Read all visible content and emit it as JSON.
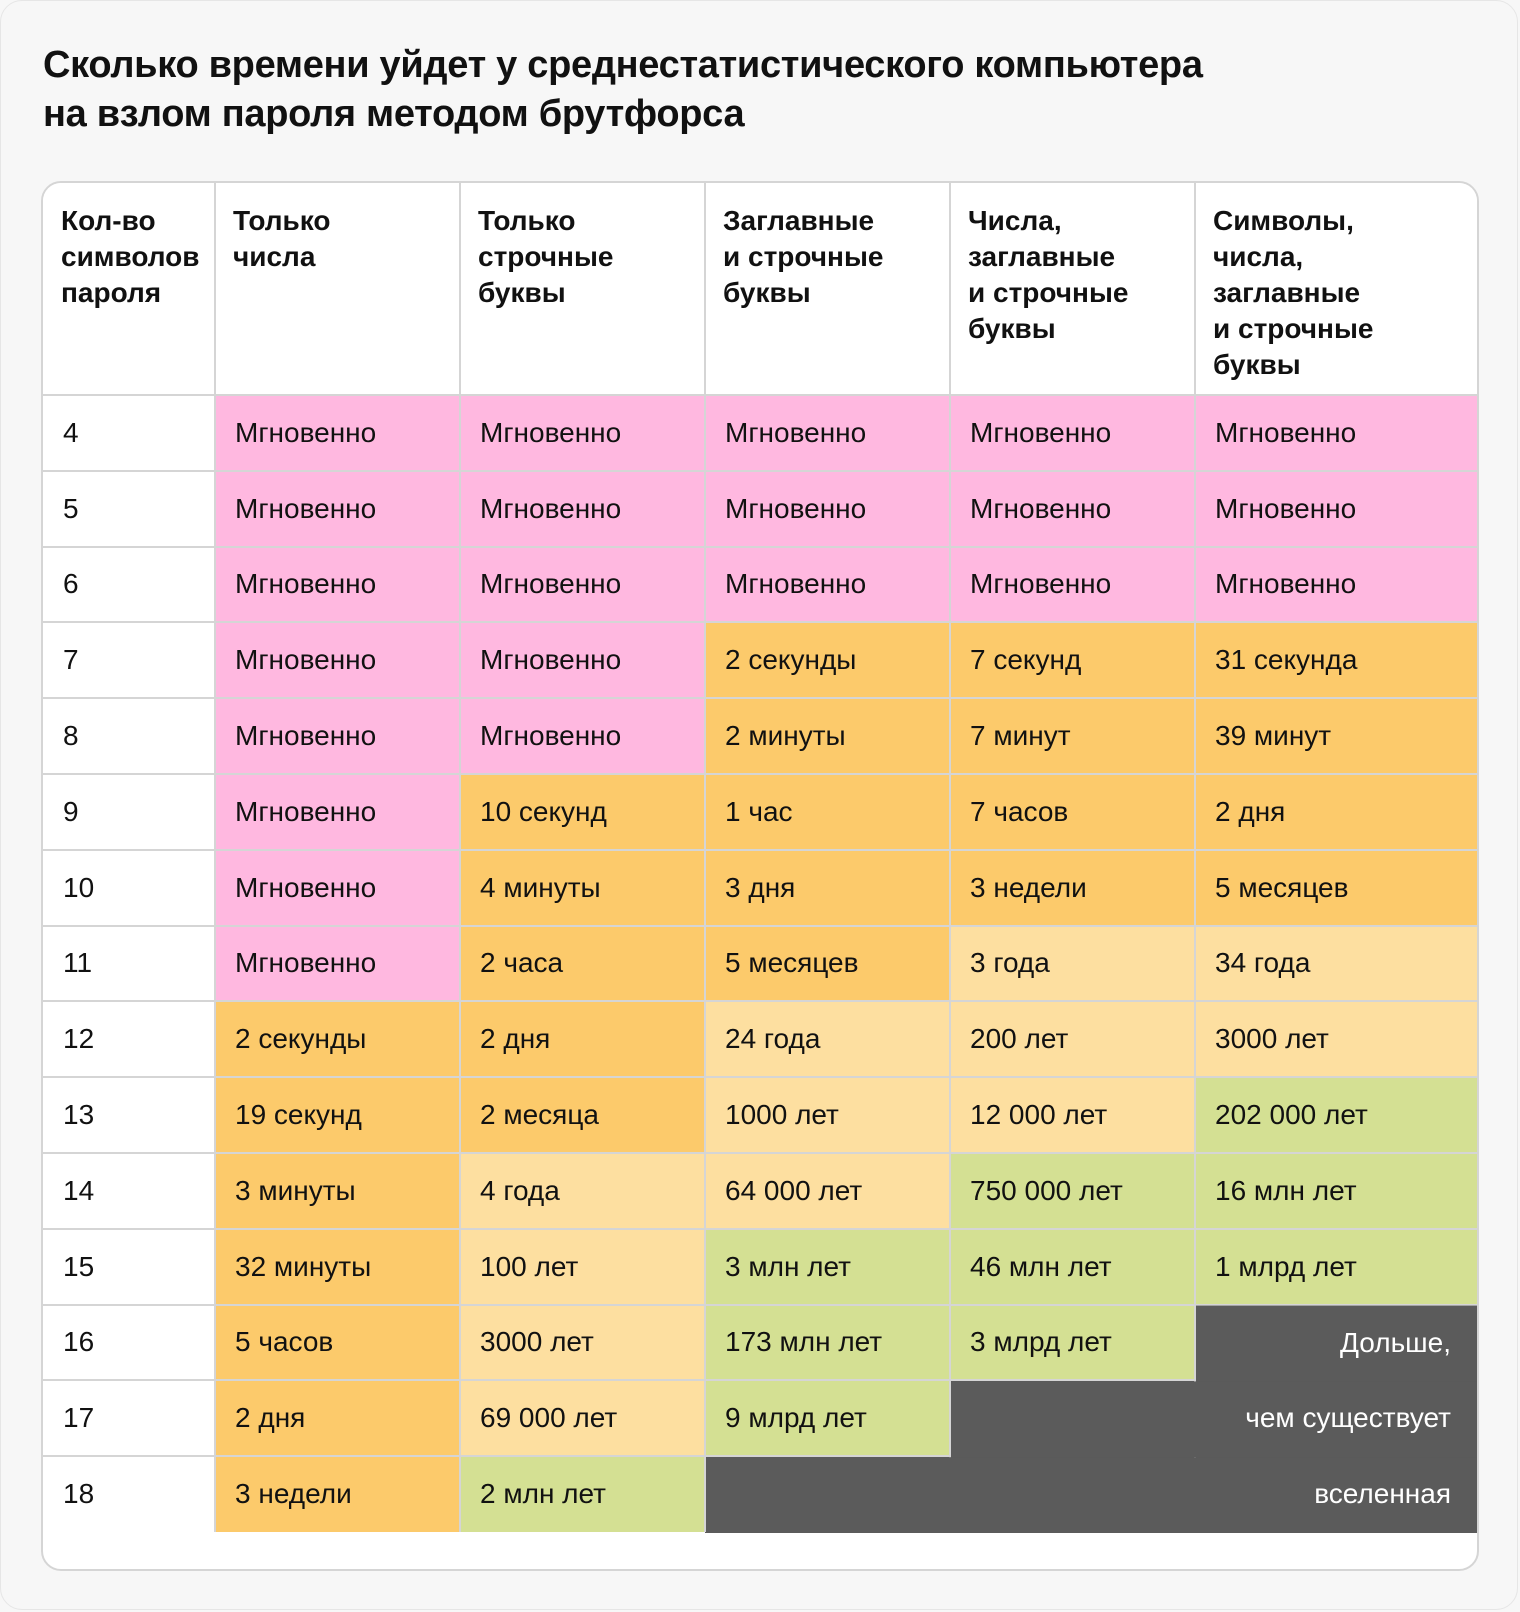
{
  "title_lines": [
    "Сколько времени уйдет у среднестатистического компьютера",
    "на взлом пароля методом брутфорса"
  ],
  "columns": [
    {
      "lines": [
        "Кол-во",
        "символов",
        "пароля"
      ]
    },
    {
      "lines": [
        "Только",
        "числа"
      ]
    },
    {
      "lines": [
        "Только",
        "строчные",
        "буквы"
      ]
    },
    {
      "lines": [
        "Заглавные",
        "и строчные",
        "буквы"
      ]
    },
    {
      "lines": [
        "Числа,",
        "заглавные",
        "и строчные",
        "буквы"
      ]
    },
    {
      "lines": [
        "Символы,",
        "числа,",
        "заглавные",
        "и строчные",
        "буквы"
      ]
    }
  ],
  "rows": [
    {
      "length": "4",
      "cells": [
        {
          "text": "Мгновенно",
          "tier": "pink"
        },
        {
          "text": "Мгновенно",
          "tier": "pink"
        },
        {
          "text": "Мгновенно",
          "tier": "pink"
        },
        {
          "text": "Мгновенно",
          "tier": "pink"
        },
        {
          "text": "Мгновенно",
          "tier": "pink"
        }
      ]
    },
    {
      "length": "5",
      "cells": [
        {
          "text": "Мгновенно",
          "tier": "pink"
        },
        {
          "text": "Мгновенно",
          "tier": "pink"
        },
        {
          "text": "Мгновенно",
          "tier": "pink"
        },
        {
          "text": "Мгновенно",
          "tier": "pink"
        },
        {
          "text": "Мгновенно",
          "tier": "pink"
        }
      ]
    },
    {
      "length": "6",
      "cells": [
        {
          "text": "Мгновенно",
          "tier": "pink"
        },
        {
          "text": "Мгновенно",
          "tier": "pink"
        },
        {
          "text": "Мгновенно",
          "tier": "pink"
        },
        {
          "text": "Мгновенно",
          "tier": "pink"
        },
        {
          "text": "Мгновенно",
          "tier": "pink"
        }
      ]
    },
    {
      "length": "7",
      "cells": [
        {
          "text": "Мгновенно",
          "tier": "pink"
        },
        {
          "text": "Мгновенно",
          "tier": "pink"
        },
        {
          "text": "2 секунды",
          "tier": "orange"
        },
        {
          "text": "7 секунд",
          "tier": "orange"
        },
        {
          "text": "31 секунда",
          "tier": "orange"
        }
      ]
    },
    {
      "length": "8",
      "cells": [
        {
          "text": "Мгновенно",
          "tier": "pink"
        },
        {
          "text": "Мгновенно",
          "tier": "pink"
        },
        {
          "text": "2 минуты",
          "tier": "orange"
        },
        {
          "text": "7 минут",
          "tier": "orange"
        },
        {
          "text": "39 минут",
          "tier": "orange"
        }
      ]
    },
    {
      "length": "9",
      "cells": [
        {
          "text": "Мгновенно",
          "tier": "pink"
        },
        {
          "text": "10 секунд",
          "tier": "orange"
        },
        {
          "text": "1 час",
          "tier": "orange"
        },
        {
          "text": "7 часов",
          "tier": "orange"
        },
        {
          "text": "2 дня",
          "tier": "orange"
        }
      ]
    },
    {
      "length": "10",
      "cells": [
        {
          "text": "Мгновенно",
          "tier": "pink"
        },
        {
          "text": "4 минуты",
          "tier": "orange"
        },
        {
          "text": "3 дня",
          "tier": "orange"
        },
        {
          "text": "3 недели",
          "tier": "orange"
        },
        {
          "text": "5 месяцев",
          "tier": "orange"
        }
      ]
    },
    {
      "length": "11",
      "cells": [
        {
          "text": "Мгновенно",
          "tier": "pink"
        },
        {
          "text": "2 часа",
          "tier": "orange"
        },
        {
          "text": "5 месяцев",
          "tier": "orange"
        },
        {
          "text": "3 года",
          "tier": "light"
        },
        {
          "text": "34 года",
          "tier": "light"
        }
      ]
    },
    {
      "length": "12",
      "cells": [
        {
          "text": "2 секунды",
          "tier": "orange"
        },
        {
          "text": "2 дня",
          "tier": "orange"
        },
        {
          "text": "24 года",
          "tier": "light"
        },
        {
          "text": "200 лет",
          "tier": "light"
        },
        {
          "text": "3000 лет",
          "tier": "light"
        }
      ]
    },
    {
      "length": "13",
      "cells": [
        {
          "text": "19 секунд",
          "tier": "orange"
        },
        {
          "text": "2 месяца",
          "tier": "orange"
        },
        {
          "text": "1000 лет",
          "tier": "light"
        },
        {
          "text": "12 000 лет",
          "tier": "light"
        },
        {
          "text": "202 000 лет",
          "tier": "green"
        }
      ]
    },
    {
      "length": "14",
      "cells": [
        {
          "text": "3 минуты",
          "tier": "orange"
        },
        {
          "text": "4 года",
          "tier": "light"
        },
        {
          "text": "64 000 лет",
          "tier": "light"
        },
        {
          "text": "750 000 лет",
          "tier": "green"
        },
        {
          "text": "16 млн лет",
          "tier": "green"
        }
      ]
    },
    {
      "length": "15",
      "cells": [
        {
          "text": "32 минуты",
          "tier": "orange"
        },
        {
          "text": "100 лет",
          "tier": "light"
        },
        {
          "text": "3 млн лет",
          "tier": "green"
        },
        {
          "text": "46 млн лет",
          "tier": "green"
        },
        {
          "text": "1 млрд лет",
          "tier": "green"
        }
      ]
    },
    {
      "length": "16",
      "cells": [
        {
          "text": "5 часов",
          "tier": "orange"
        },
        {
          "text": "3000 лет",
          "tier": "light"
        },
        {
          "text": "173 млн лет",
          "tier": "green"
        },
        {
          "text": "3 млрд лет",
          "tier": "green"
        },
        {
          "text": "",
          "tier": "dark"
        }
      ]
    },
    {
      "length": "17",
      "cells": [
        {
          "text": "2 дня",
          "tier": "orange"
        },
        {
          "text": "69 000 лет",
          "tier": "light"
        },
        {
          "text": "9 млрд лет",
          "tier": "green"
        },
        {
          "text": "",
          "tier": "dark"
        },
        {
          "text": "",
          "tier": "dark"
        }
      ]
    },
    {
      "length": "18",
      "cells": [
        {
          "text": "3 недели",
          "tier": "orange"
        },
        {
          "text": "2 млн лет",
          "tier": "green"
        },
        {
          "text": "",
          "tier": "dark"
        },
        {
          "text": "",
          "tier": "dark"
        },
        {
          "text": "",
          "tier": "dark"
        }
      ]
    }
  ],
  "universe_note_lines": [
    "Дольше,",
    "чем существует",
    "вселенная"
  ],
  "colors": {
    "pink": "#ffb8e0",
    "orange": "#fcca6b",
    "light": "#fddfa0",
    "green": "#d4e093",
    "dark": "#5b5b5b",
    "grid": "#d5d5d5"
  }
}
